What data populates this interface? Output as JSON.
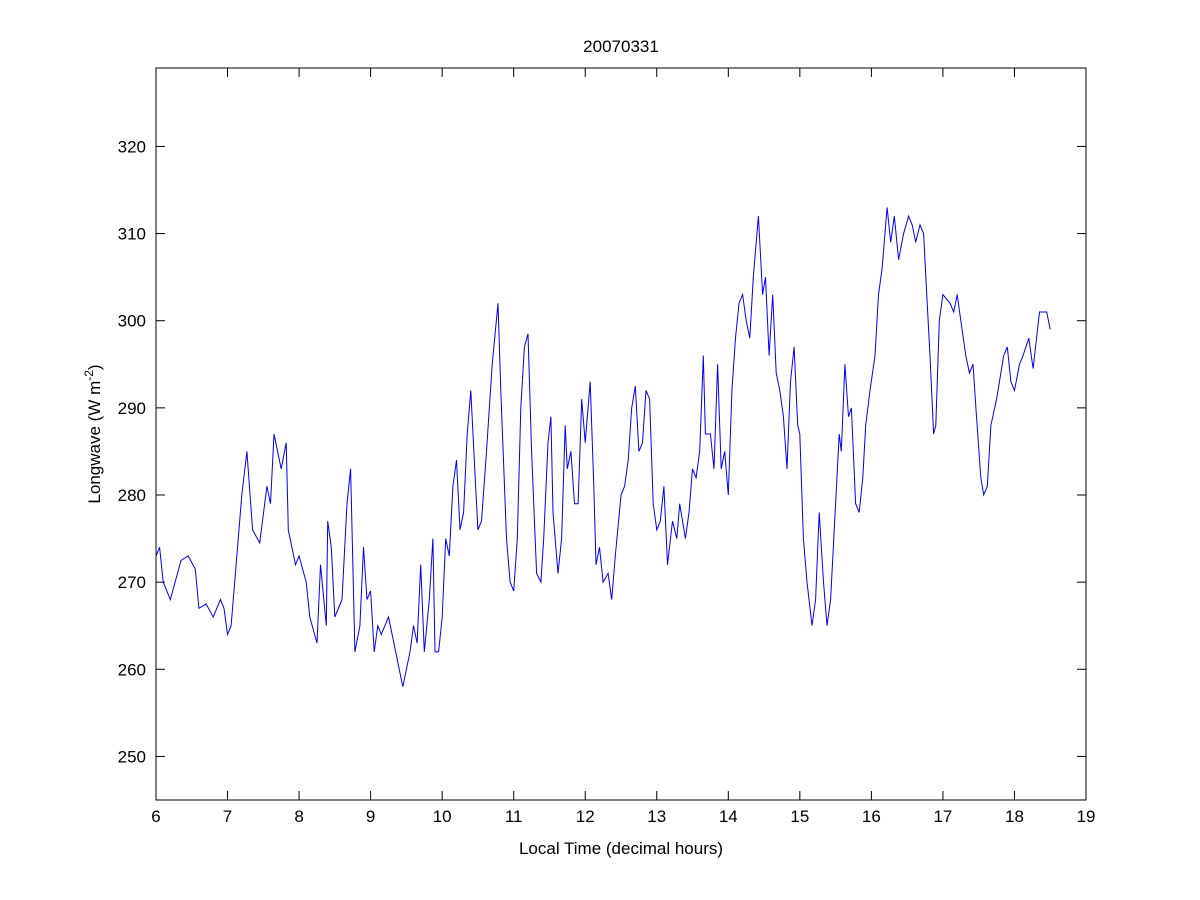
{
  "chart_data": {
    "type": "line",
    "title": "20070331",
    "xlabel": "Local Time (decimal hours)",
    "ylabel_main": "Longwave (W m",
    "ylabel_sup": "-2",
    "ylabel_close": ")",
    "xlim": [
      6,
      19
    ],
    "ylim": [
      245,
      329
    ],
    "xticks": [
      "6",
      "7",
      "8",
      "9",
      "10",
      "11",
      "12",
      "13",
      "14",
      "15",
      "16",
      "17",
      "18",
      "19"
    ],
    "yticks": [
      "250",
      "260",
      "270",
      "280",
      "290",
      "300",
      "310",
      "320"
    ],
    "grid": false,
    "line_color": "#0000ff",
    "series": [
      {
        "name": "Longwave",
        "x": [
          6.0,
          6.05,
          6.1,
          6.2,
          6.3,
          6.35,
          6.45,
          6.55,
          6.6,
          6.7,
          6.8,
          6.9,
          6.95,
          7.0,
          7.05,
          7.1,
          7.2,
          7.27,
          7.35,
          7.45,
          7.55,
          7.6,
          7.65,
          7.7,
          7.75,
          7.82,
          7.85,
          7.95,
          8.0,
          8.1,
          8.15,
          8.25,
          8.3,
          8.38,
          8.4,
          8.45,
          8.5,
          8.6,
          8.67,
          8.72,
          8.78,
          8.85,
          8.9,
          8.95,
          9.0,
          9.05,
          9.1,
          9.15,
          9.25,
          9.35,
          9.45,
          9.5,
          9.55,
          9.6,
          9.65,
          9.7,
          9.75,
          9.82,
          9.87,
          9.9,
          9.95,
          10.0,
          10.05,
          10.1,
          10.15,
          10.2,
          10.25,
          10.3,
          10.35,
          10.4,
          10.45,
          10.5,
          10.55,
          10.62,
          10.7,
          10.78,
          10.82,
          10.9,
          10.95,
          11.0,
          11.05,
          11.1,
          11.15,
          11.2,
          11.25,
          11.32,
          11.38,
          11.42,
          11.48,
          11.52,
          11.55,
          11.62,
          11.67,
          11.72,
          11.75,
          11.8,
          11.85,
          11.9,
          11.95,
          12.0,
          12.07,
          12.12,
          12.15,
          12.2,
          12.25,
          12.32,
          12.37,
          12.42,
          12.5,
          12.55,
          12.6,
          12.65,
          12.7,
          12.75,
          12.8,
          12.85,
          12.9,
          12.95,
          13.0,
          13.05,
          13.1,
          13.15,
          13.22,
          13.28,
          13.32,
          13.4,
          13.45,
          13.5,
          13.55,
          13.6,
          13.65,
          13.68,
          13.75,
          13.8,
          13.85,
          13.9,
          13.95,
          14.0,
          14.05,
          14.1,
          14.15,
          14.2,
          14.25,
          14.3,
          14.35,
          14.42,
          14.48,
          14.52,
          14.57,
          14.62,
          14.67,
          14.72,
          14.77,
          14.82,
          14.87,
          14.92,
          14.97,
          15.0,
          15.05,
          15.1,
          15.17,
          15.22,
          15.27,
          15.33,
          15.38,
          15.43,
          15.5,
          15.55,
          15.58,
          15.63,
          15.68,
          15.72,
          15.78,
          15.83,
          15.88,
          15.92,
          15.98,
          16.05,
          16.1,
          16.15,
          16.22,
          16.27,
          16.32,
          16.38,
          16.45,
          16.52,
          16.57,
          16.62,
          16.68,
          16.73,
          16.78,
          16.82,
          16.87,
          16.9,
          16.95,
          17.0,
          17.1,
          17.15,
          17.2,
          17.25,
          17.32,
          17.37,
          17.42,
          17.47,
          17.53,
          17.57,
          17.62,
          17.67,
          17.75,
          17.85,
          17.9,
          17.95,
          18.0,
          18.07,
          18.12,
          18.2,
          18.26,
          18.35,
          18.45,
          18.5
        ],
        "y": [
          273,
          274,
          270,
          268,
          271,
          272.5,
          273,
          271.5,
          267,
          267.5,
          266,
          268,
          267,
          264,
          265,
          270,
          280,
          285,
          276,
          274.5,
          281,
          279,
          287,
          285,
          283,
          286,
          276,
          272,
          273,
          270,
          266,
          263,
          272,
          265,
          277,
          274,
          266,
          268,
          279,
          283,
          262,
          265,
          274,
          268,
          269,
          262,
          265,
          264,
          266,
          262,
          258,
          260,
          262,
          265,
          263,
          272,
          262,
          268,
          275,
          262,
          262,
          266,
          275,
          273,
          281,
          284,
          276,
          278,
          287,
          292,
          284,
          276,
          277,
          285,
          295,
          302,
          292,
          275,
          270,
          269,
          275,
          290,
          297,
          298.5,
          285,
          271,
          270,
          275,
          286,
          289,
          278,
          271,
          275,
          288,
          283,
          285,
          279,
          279,
          291,
          286,
          293,
          281,
          272,
          274,
          270,
          271,
          268,
          273,
          280,
          281,
          284,
          290,
          292.5,
          285,
          286,
          292,
          291,
          279,
          276,
          277,
          281,
          272,
          277,
          275,
          279,
          275,
          278,
          283,
          282,
          285,
          296,
          287,
          287,
          283,
          295,
          283,
          285,
          280,
          292,
          298,
          302,
          303,
          300,
          298,
          305,
          312,
          303,
          305,
          296,
          303,
          294,
          292,
          289,
          283,
          293,
          297,
          288,
          287,
          275,
          270,
          265,
          268,
          278,
          270,
          265,
          268,
          279,
          287,
          285,
          295,
          289,
          290,
          279,
          278,
          282,
          288,
          292,
          296,
          303,
          306,
          313,
          309,
          312,
          307,
          310,
          312,
          311,
          309,
          311,
          310,
          302,
          296,
          287,
          288,
          300,
          303,
          302,
          301,
          303,
          300,
          296,
          294,
          295,
          289,
          282,
          280,
          281,
          288,
          291,
          296,
          297,
          293,
          292,
          295,
          296,
          298,
          294.5,
          301,
          301,
          299
        ]
      }
    ]
  }
}
